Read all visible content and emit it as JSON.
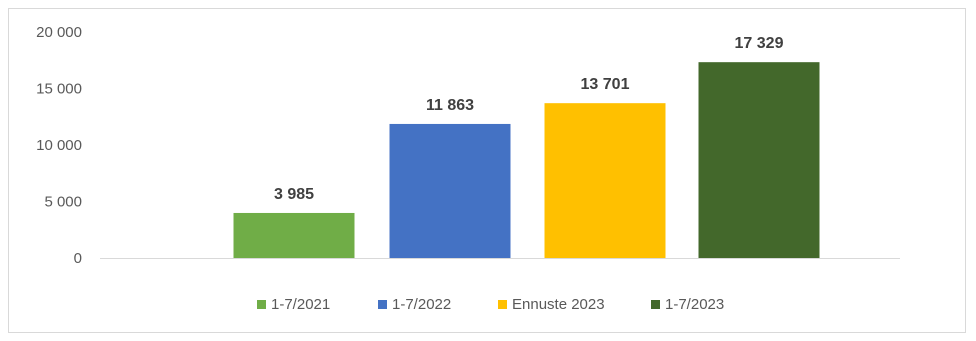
{
  "chart_data": {
    "type": "bar",
    "title": "",
    "xlabel": "",
    "ylabel": "",
    "ylim": [
      0,
      20000
    ],
    "yticks": [
      0,
      5000,
      10000,
      15000,
      20000
    ],
    "ytick_labels": [
      "0",
      "5 000",
      "10 000",
      "15 000",
      "20 000"
    ],
    "grid": false,
    "legend_position": "bottom",
    "categories": [
      "1-7/2021",
      "1-7/2022",
      "Ennuste 2023",
      "1-7/2023"
    ],
    "values": [
      3985,
      11863,
      13701,
      17329
    ],
    "value_labels": [
      "3 985",
      "11 863",
      "13 701",
      "17 329"
    ],
    "colors": [
      "#70ad47",
      "#4472c4",
      "#ffc000",
      "#43682b"
    ]
  }
}
